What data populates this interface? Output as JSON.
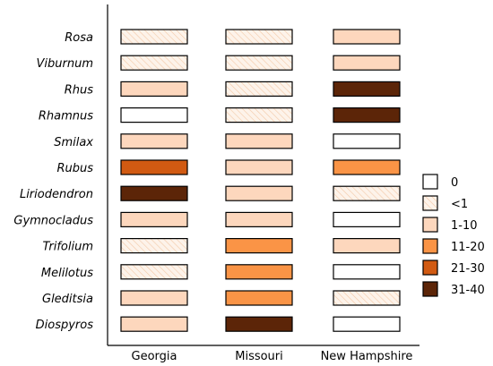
{
  "chart_data": {
    "type": "heatmap",
    "title": "",
    "xlabel": "",
    "ylabel": "",
    "columns": [
      "Georgia",
      "Missouri",
      "New Hampshire"
    ],
    "rows": [
      "Rosa",
      "Viburnum",
      "Rhus",
      "Rhamnus",
      "Smilax",
      "Rubus",
      "Liriodendron",
      "Gymnocladus",
      "Trifolium",
      "Melilotus",
      "Gleditsia",
      "Diospyros"
    ],
    "values": [
      [
        "<1",
        "<1",
        "1-10"
      ],
      [
        "<1",
        "<1",
        "1-10"
      ],
      [
        "1-10",
        "<1",
        "31-40"
      ],
      [
        "0",
        "<1",
        "31-40"
      ],
      [
        "1-10",
        "1-10",
        "0"
      ],
      [
        "21-30",
        "1-10",
        "11-20"
      ],
      [
        "31-40",
        "1-10",
        "<1"
      ],
      [
        "1-10",
        "1-10",
        "0"
      ],
      [
        "<1",
        "11-20",
        "1-10"
      ],
      [
        "<1",
        "11-20",
        "0"
      ],
      [
        "1-10",
        "11-20",
        "<1"
      ],
      [
        "1-10",
        "31-40",
        "0"
      ]
    ],
    "legend": {
      "position": "right",
      "categories": [
        {
          "label": "0",
          "color": "#ffffff",
          "hatch": false
        },
        {
          "label": "<1",
          "color": "#fdf3ea",
          "hatch": true
        },
        {
          "label": "1-10",
          "color": "#fdd7bd",
          "hatch": false
        },
        {
          "label": "11-20",
          "color": "#fa9446",
          "hatch": false
        },
        {
          "label": "21-30",
          "color": "#d15a12",
          "hatch": false
        },
        {
          "label": "31-40",
          "color": "#5c2508",
          "hatch": false
        }
      ]
    },
    "grid": false
  }
}
